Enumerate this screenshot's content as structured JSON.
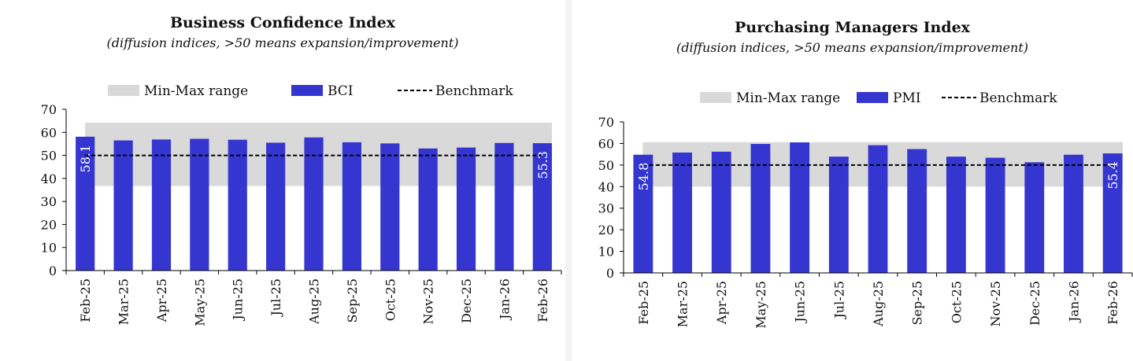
{
  "chart_data": [
    {
      "type": "bar",
      "title": "Business Confidence Index",
      "subtitle": "(diffusion indices, >50 means expansion/improvement)",
      "categories": [
        "Feb-25",
        "Mar-25",
        "Apr-25",
        "May-25",
        "Jun-25",
        "Jul-25",
        "Aug-25",
        "Sep-25",
        "Oct-25",
        "Nov-25",
        "Dec-25",
        "Jan-26",
        "Feb-26"
      ],
      "series": [
        {
          "name": "BCI",
          "values": [
            58.1,
            56.5,
            56.9,
            57.2,
            56.8,
            55.5,
            57.8,
            55.7,
            55.2,
            53.0,
            53.4,
            55.4,
            55.3
          ]
        }
      ],
      "range": {
        "name": "Min-Max range",
        "min": 36.7,
        "max": 64.2
      },
      "benchmark": {
        "name": "Benchmark",
        "value": 50
      },
      "labels": [
        {
          "index": 0,
          "text": "58.1"
        },
        {
          "index": 12,
          "text": "55.3"
        }
      ],
      "ylim": [
        0,
        70
      ],
      "yticks": [
        "0",
        "10",
        "20",
        "30",
        "40",
        "50",
        "60",
        "70"
      ],
      "colors": {
        "bar": "#3535d0",
        "range": "#d9d9d9",
        "benchmark": "#000000"
      },
      "legend_position": "top"
    },
    {
      "type": "bar",
      "title": "Purchasing Managers Index",
      "subtitle": "(diffusion indices, >50 means expansion/improvement)",
      "categories": [
        "Feb-25",
        "Mar-25",
        "Apr-25",
        "May-25",
        "Jun-25",
        "Jul-25",
        "Aug-25",
        "Sep-25",
        "Oct-25",
        "Nov-25",
        "Dec-25",
        "Jan-26",
        "Feb-26"
      ],
      "series": [
        {
          "name": "PMI",
          "values": [
            54.8,
            55.8,
            56.2,
            59.8,
            60.5,
            53.9,
            59.2,
            57.4,
            53.9,
            53.4,
            51.3,
            54.8,
            55.4
          ]
        }
      ],
      "range": {
        "name": "Min-Max range",
        "min": 40.0,
        "max": 60.6
      },
      "benchmark": {
        "name": "Benchmark",
        "value": 50
      },
      "labels": [
        {
          "index": 0,
          "text": "54.8"
        },
        {
          "index": 12,
          "text": "55.4"
        }
      ],
      "ylim": [
        0,
        70
      ],
      "yticks": [
        "0",
        "10",
        "20",
        "30",
        "40",
        "50",
        "60",
        "70"
      ],
      "colors": {
        "bar": "#3535d0",
        "range": "#d9d9d9",
        "benchmark": "#000000"
      },
      "legend_position": "top"
    }
  ]
}
